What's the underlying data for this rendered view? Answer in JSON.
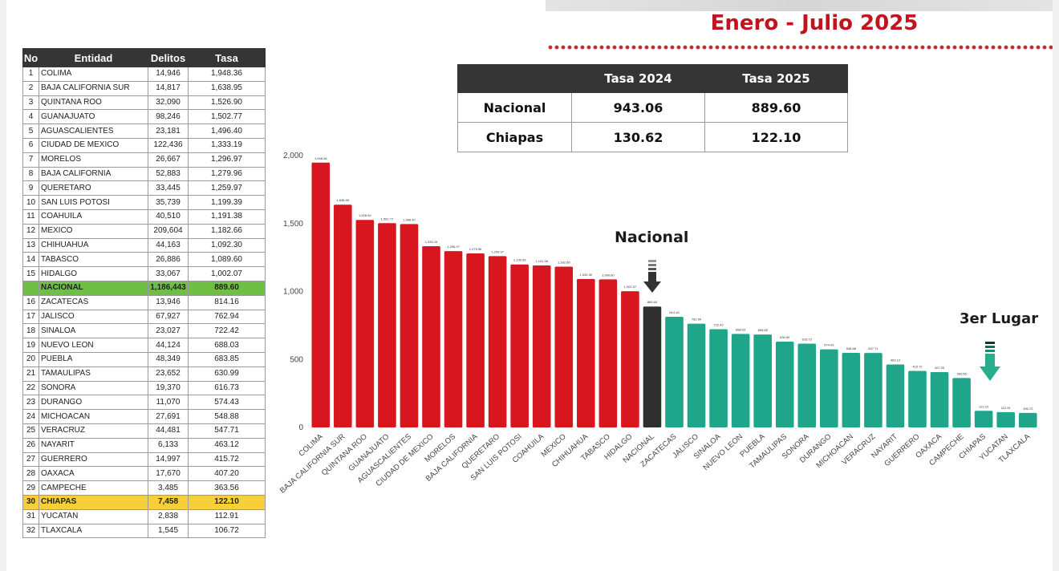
{
  "header": {
    "period_title": "Enero - Julio 2025"
  },
  "ranking": {
    "headers": {
      "no": "No",
      "entidad": "Entidad",
      "delitos": "Delitos",
      "tasa": "Tasa"
    },
    "rows": [
      {
        "no": "1",
        "entidad": "COLIMA",
        "delitos": "14,946",
        "tasa": "1,948.36"
      },
      {
        "no": "2",
        "entidad": "BAJA CALIFORNIA SUR",
        "delitos": "14,817",
        "tasa": "1,638.95"
      },
      {
        "no": "3",
        "entidad": "QUINTANA ROO",
        "delitos": "32,090",
        "tasa": "1,526.90"
      },
      {
        "no": "4",
        "entidad": "GUANAJUATO",
        "delitos": "98,246",
        "tasa": "1,502.77"
      },
      {
        "no": "5",
        "entidad": "AGUASCALIENTES",
        "delitos": "23,181",
        "tasa": "1,496.40"
      },
      {
        "no": "6",
        "entidad": "CIUDAD DE MEXICO",
        "delitos": "122,436",
        "tasa": "1,333.19"
      },
      {
        "no": "7",
        "entidad": "MORELOS",
        "delitos": "26,667",
        "tasa": "1,296.97"
      },
      {
        "no": "8",
        "entidad": "BAJA CALIFORNIA",
        "delitos": "52,883",
        "tasa": "1,279.96"
      },
      {
        "no": "9",
        "entidad": "QUERETARO",
        "delitos": "33,445",
        "tasa": "1,259.97"
      },
      {
        "no": "10",
        "entidad": "SAN LUIS POTOSI",
        "delitos": "35,739",
        "tasa": "1,199.39"
      },
      {
        "no": "11",
        "entidad": "COAHUILA",
        "delitos": "40,510",
        "tasa": "1,191.38"
      },
      {
        "no": "12",
        "entidad": "MEXICO",
        "delitos": "209,604",
        "tasa": "1,182.66"
      },
      {
        "no": "13",
        "entidad": "CHIHUAHUA",
        "delitos": "44,163",
        "tasa": "1,092.30"
      },
      {
        "no": "14",
        "entidad": "TABASCO",
        "delitos": "26,886",
        "tasa": "1,089.60"
      },
      {
        "no": "15",
        "entidad": "HIDALGO",
        "delitos": "33,067",
        "tasa": "1,002.07"
      },
      {
        "no": "",
        "entidad": "NACIONAL",
        "delitos": "1,186,443",
        "tasa": "889.60",
        "highlight": "nac"
      },
      {
        "no": "16",
        "entidad": "ZACATECAS",
        "delitos": "13,946",
        "tasa": "814.16"
      },
      {
        "no": "17",
        "entidad": "JALISCO",
        "delitos": "67,927",
        "tasa": "762.94"
      },
      {
        "no": "18",
        "entidad": "SINALOA",
        "delitos": "23,027",
        "tasa": "722.42"
      },
      {
        "no": "19",
        "entidad": "NUEVO LEON",
        "delitos": "44,124",
        "tasa": "688.03"
      },
      {
        "no": "20",
        "entidad": "PUEBLA",
        "delitos": "48,349",
        "tasa": "683.85"
      },
      {
        "no": "21",
        "entidad": "TAMAULIPAS",
        "delitos": "23,652",
        "tasa": "630.99"
      },
      {
        "no": "22",
        "entidad": "SONORA",
        "delitos": "19,370",
        "tasa": "616.73"
      },
      {
        "no": "23",
        "entidad": "DURANGO",
        "delitos": "11,070",
        "tasa": "574.43"
      },
      {
        "no": "24",
        "entidad": "MICHOACAN",
        "delitos": "27,691",
        "tasa": "548.88"
      },
      {
        "no": "25",
        "entidad": "VERACRUZ",
        "delitos": "44,481",
        "tasa": "547.71"
      },
      {
        "no": "26",
        "entidad": "NAYARIT",
        "delitos": "6,133",
        "tasa": "463.12"
      },
      {
        "no": "27",
        "entidad": "GUERRERO",
        "delitos": "14,997",
        "tasa": "415.72"
      },
      {
        "no": "28",
        "entidad": "OAXACA",
        "delitos": "17,670",
        "tasa": "407.20"
      },
      {
        "no": "29",
        "entidad": "CAMPECHE",
        "delitos": "3,485",
        "tasa": "363.56"
      },
      {
        "no": "30",
        "entidad": "CHIAPAS",
        "delitos": "7,458",
        "tasa": "122.10",
        "highlight": "chi"
      },
      {
        "no": "31",
        "entidad": "YUCATAN",
        "delitos": "2,838",
        "tasa": "112.91"
      },
      {
        "no": "32",
        "entidad": "TLAXCALA",
        "delitos": "1,545",
        "tasa": "106.72"
      }
    ]
  },
  "comparison": {
    "headers": [
      "",
      "Tasa 2024",
      "Tasa 2025"
    ],
    "rows": [
      {
        "label": "Nacional",
        "t2024": "943.06",
        "t2025": "889.60"
      },
      {
        "label": "Chiapas",
        "t2024": "130.62",
        "t2025": "122.10"
      }
    ]
  },
  "annotations": {
    "nacional": "Nacional",
    "tercer_lugar": "3er Lugar"
  },
  "chart_data": {
    "type": "bar",
    "title": "",
    "xlabel": "",
    "ylabel": "",
    "ylim": [
      0,
      2000
    ],
    "yticks": [
      0,
      500,
      1000,
      1500,
      2000
    ],
    "ytick_labels": [
      "0",
      "500",
      "1,000",
      "1,500",
      "2,000"
    ],
    "categories": [
      "COLIMA",
      "BAJA CALIFORNIA SUR",
      "QUINTANA ROO",
      "GUANAJUATO",
      "AGUASCALIENTES",
      "CIUDAD DE MEXICO",
      "MORELOS",
      "BAJA CALIFORNIA",
      "QUERETARO",
      "SAN LUIS POTOSI",
      "COAHUILA",
      "MEXICO",
      "CHIHUAHUA",
      "TABASCO",
      "HIDALGO",
      "NACIONAL",
      "ZACATECAS",
      "JALISCO",
      "SINALOA",
      "NUEVO LEON",
      "PUEBLA",
      "TAMAULIPAS",
      "SONORA",
      "DURANGO",
      "MICHOACAN",
      "VERACRUZ",
      "NAYARIT",
      "GUERRERO",
      "OAXACA",
      "CAMPECHE",
      "CHIAPAS",
      "YUCATAN",
      "TLAXCALA"
    ],
    "values": [
      1948.36,
      1638.95,
      1526.9,
      1502.77,
      1496.4,
      1333.19,
      1296.97,
      1279.96,
      1259.97,
      1199.39,
      1191.38,
      1182.66,
      1092.3,
      1089.6,
      1002.07,
      889.6,
      814.16,
      762.94,
      722.42,
      688.03,
      683.85,
      630.99,
      616.73,
      574.43,
      548.88,
      547.71,
      463.12,
      415.72,
      407.2,
      363.56,
      122.1,
      112.91,
      106.72
    ],
    "data_labels": [
      "1,948.36",
      "1,638.95",
      "1,526.90",
      "1,502.77",
      "1,496.40",
      "1,333.19",
      "1,296.97",
      "1,279.96",
      "1,259.97",
      "1,199.39",
      "1,191.38",
      "1,182.66",
      "1,092.30",
      "1,089.60",
      "1,002.07",
      "889.60",
      "814.16",
      "762.94",
      "722.42",
      "688.03",
      "683.85",
      "630.99",
      "616.73",
      "574.43",
      "548.88",
      "547.71",
      "463.12",
      "415.72",
      "407.20",
      "363.56",
      "122.10",
      "112.91",
      "106.72"
    ],
    "colors": {
      "above": "#d7161f",
      "nacional": "#2f2f2f",
      "below": "#1ea58a"
    }
  }
}
